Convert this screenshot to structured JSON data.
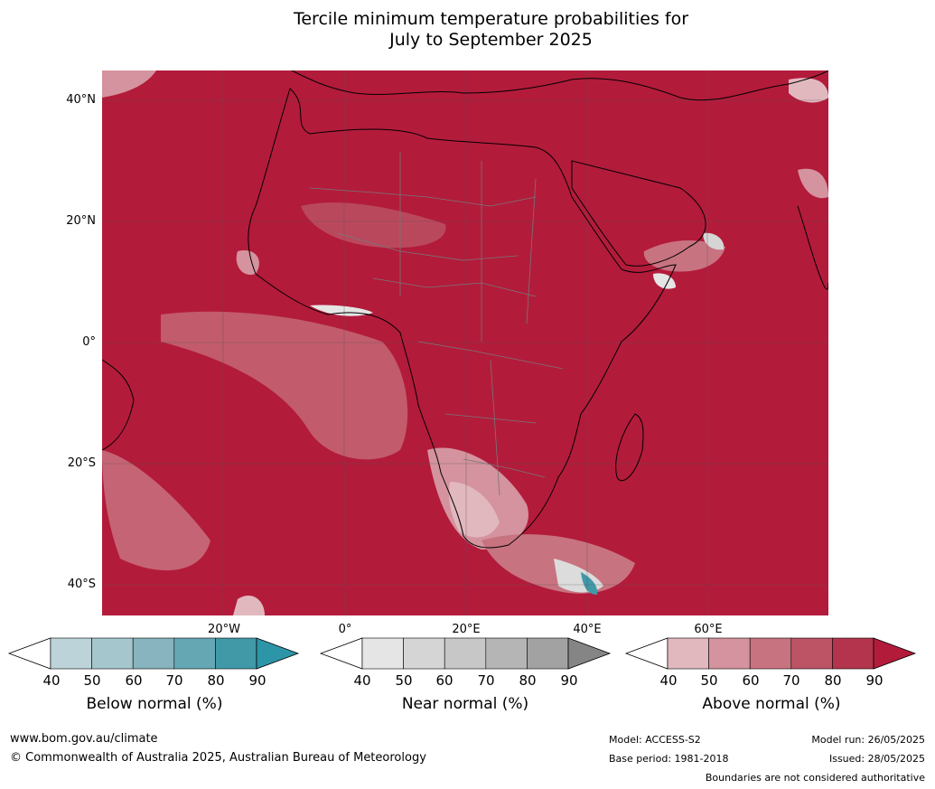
{
  "title": {
    "line1": "Tercile minimum temperature probabilities for",
    "line2": "July to September 2025"
  },
  "map": {
    "lat_labels": [
      "40°N",
      "20°N",
      "0°",
      "20°S",
      "40°S"
    ],
    "lon_labels": [
      "20°W",
      "0°",
      "20°E",
      "40°E",
      "60°E"
    ],
    "dominant_category": "Above normal",
    "background_color": "#b31b3b"
  },
  "colorbars": [
    {
      "label": "Below normal (%)",
      "ticks": [
        "40",
        "50",
        "60",
        "70",
        "80",
        "90"
      ],
      "colors": [
        "#ffffff",
        "#bdd3da",
        "#a5c6cd",
        "#87b4be",
        "#65a8b4",
        "#4199a8",
        "#2d95a8"
      ]
    },
    {
      "label": "Near normal (%)",
      "ticks": [
        "40",
        "50",
        "60",
        "70",
        "80",
        "90"
      ],
      "colors": [
        "#ffffff",
        "#e5e5e5",
        "#d5d5d5",
        "#c7c7c7",
        "#b5b5b5",
        "#a2a2a2",
        "#858585"
      ]
    },
    {
      "label": "Above normal (%)",
      "ticks": [
        "40",
        "50",
        "60",
        "70",
        "80",
        "90"
      ],
      "colors": [
        "#ffffff",
        "#e2b8bf",
        "#d4939e",
        "#c87380",
        "#bc5466",
        "#b3344c",
        "#b31b3b"
      ]
    }
  ],
  "footer": {
    "url": "www.bom.gov.au/climate",
    "copyright": "© Commonwealth of Australia 2025, Australian Bureau of Meteorology",
    "model": "Model: ACCESS-S2",
    "base_period": "Base period: 1981-2018",
    "model_run": "Model run: 26/05/2025",
    "issued": "Issued: 28/05/2025",
    "disclaimer": "Boundaries are not considered authoritative"
  }
}
